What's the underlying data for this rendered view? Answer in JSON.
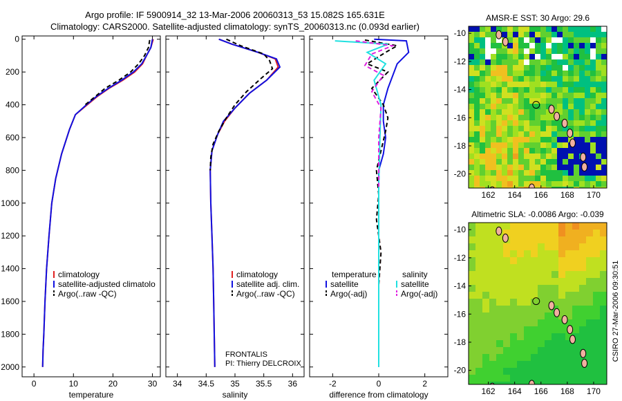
{
  "header": {
    "title_line1": "Argo profile: IF 5900914_32 13-Mar-2006 20060313_53 15.082S 165.631E",
    "title_line2": "Climatology: CARS2000. Satellite-adjusted climatology: synTS_20060313.nc (0.093d earlier)"
  },
  "colors": {
    "climatology": "#e02020",
    "satellite": "#1010e0",
    "argo": "#000000",
    "sal_satellite": "#20e0e0",
    "sal_argo": "#e020e0"
  },
  "chart_data": [
    {
      "type": "line",
      "xlabel": "temperature",
      "ylabel": "",
      "xlim": [
        -3,
        32
      ],
      "ylim": [
        2060,
        -20
      ],
      "y_reversed": true,
      "xticks": [
        0,
        10,
        20,
        30
      ],
      "yticks": [
        0,
        200,
        400,
        600,
        800,
        1000,
        1200,
        1400,
        1600,
        1800,
        2000
      ],
      "legend": [
        "climatology",
        "satellite-adjusted climatolo",
        "Argo(..raw -QC)"
      ],
      "series": [
        {
          "name": "climatology",
          "color": "#e02020",
          "dash": "solid",
          "x": [
            30.2,
            29.6,
            28.5,
            27.5,
            25.5,
            22.5,
            19.0,
            16.0,
            13.5,
            10.5,
            9.0,
            7.0,
            5.5,
            4.5,
            3.8,
            3.2,
            2.8,
            2.5,
            2.3,
            2.2
          ],
          "y": [
            0,
            50,
            100,
            150,
            200,
            250,
            300,
            350,
            400,
            460,
            550,
            700,
            850,
            1000,
            1200,
            1400,
            1600,
            1800,
            1900,
            2000
          ]
        },
        {
          "name": "satellite-adjusted climatolo",
          "color": "#1010e0",
          "dash": "solid",
          "x": [
            30.0,
            29.6,
            28.5,
            27.3,
            25.2,
            22.2,
            18.8,
            15.8,
            13.3,
            10.5,
            9.0,
            7.0,
            5.5,
            4.5,
            3.8,
            3.2,
            2.8,
            2.5,
            2.3,
            2.2
          ],
          "y": [
            0,
            50,
            100,
            150,
            200,
            250,
            300,
            350,
            400,
            460,
            550,
            700,
            850,
            1000,
            1200,
            1400,
            1600,
            1800,
            1900,
            2000
          ]
        },
        {
          "name": "Argo(..raw -QC)",
          "color": "#000000",
          "dash": "dashed",
          "x": [
            29.3,
            29.0,
            28.0,
            26.5,
            24.5,
            21.5,
            18.0,
            15.5,
            13.0
          ],
          "y": [
            5,
            50,
            100,
            150,
            200,
            250,
            300,
            350,
            400
          ]
        }
      ]
    },
    {
      "type": "line",
      "xlabel": "salinity",
      "ylabel": "",
      "xlim": [
        33.8,
        36.2
      ],
      "ylim": [
        2060,
        -20
      ],
      "y_reversed": true,
      "xticks": [
        34,
        34.5,
        35,
        35.5,
        36
      ],
      "legend": [
        "climatology",
        "satellite adj. clim.",
        "Argo(..raw -QC)"
      ],
      "annotations": [
        "FRONTALIS",
        "PI: Thierry DELCROIX"
      ],
      "series": [
        {
          "name": "climatology",
          "color": "#e02020",
          "dash": "solid",
          "x": [
            34.72,
            34.95,
            35.4,
            35.7,
            35.75,
            35.55,
            35.25,
            35.0,
            34.82,
            34.7,
            34.6,
            34.57,
            34.58,
            34.6,
            34.62,
            34.63,
            34.64,
            34.65
          ],
          "y": [
            0,
            30,
            80,
            120,
            170,
            250,
            330,
            420,
            500,
            580,
            680,
            800,
            1000,
            1200,
            1400,
            1600,
            1800,
            2000
          ]
        },
        {
          "name": "satellite adj. clim.",
          "color": "#1010e0",
          "dash": "solid",
          "x": [
            34.72,
            34.95,
            35.4,
            35.72,
            35.78,
            35.55,
            35.25,
            35.0,
            34.8,
            34.7,
            34.6,
            34.57,
            34.58,
            34.6,
            34.62,
            34.63,
            34.64,
            34.65
          ],
          "y": [
            0,
            30,
            80,
            120,
            170,
            250,
            330,
            420,
            500,
            580,
            680,
            800,
            1000,
            1200,
            1400,
            1600,
            1800,
            2000
          ]
        },
        {
          "name": "Argo(..raw -QC)",
          "color": "#000000",
          "dash": "dashed",
          "x": [
            34.85,
            35.1,
            35.5,
            35.6,
            35.65,
            35.45,
            35.2,
            35.0,
            34.85,
            34.72,
            34.62,
            34.58,
            34.57
          ],
          "y": [
            0,
            40,
            90,
            130,
            180,
            240,
            320,
            400,
            480,
            560,
            640,
            720,
            800
          ]
        }
      ]
    },
    {
      "type": "line",
      "xlabel": "difference from climatology",
      "ylabel": "",
      "xlim": [
        -3,
        3
      ],
      "ylim": [
        2060,
        -20
      ],
      "y_reversed": true,
      "xticks": [
        -2,
        0,
        2
      ],
      "legend_left_heading": "temperature",
      "legend_right_heading": "salinity",
      "legend": [
        "satellite",
        "Argo(-adj)",
        "satellite",
        "Argo(-adj)"
      ],
      "series": [
        {
          "name": "satellite",
          "color": "#1010e0",
          "dash": "solid",
          "x": [
            -0.2,
            1.2,
            1.3,
            0.8,
            0.4,
            0.2,
            0.2,
            0.3,
            0.2,
            0.0,
            0.0,
            0.0,
            0.0
          ],
          "y": [
            0,
            10,
            80,
            150,
            300,
            400,
            500,
            600,
            700,
            800,
            1200,
            1600,
            2000
          ]
        },
        {
          "name": "Argo(-adj)",
          "color": "#000000",
          "dash": "dashed",
          "x": [
            -0.6,
            0.8,
            0.3,
            -0.5,
            0.4,
            -0.3,
            0.2,
            0.4,
            0.3,
            0.1,
            -0.1,
            0.0,
            -0.1,
            0.1,
            0.0
          ],
          "y": [
            5,
            40,
            80,
            150,
            200,
            300,
            400,
            480,
            560,
            680,
            800,
            950,
            1100,
            1300,
            1500
          ]
        },
        {
          "name": "satellite",
          "color": "#20e0e0",
          "dash": "solid",
          "x": [
            -1.9,
            0.4,
            -0.5,
            0.3,
            -0.2,
            0.1,
            0.05,
            0.0,
            0.0
          ],
          "y": [
            10,
            30,
            80,
            150,
            250,
            400,
            600,
            900,
            2000
          ]
        },
        {
          "name": "Argo(-adj)",
          "color": "#e020e0",
          "dash": "dashed",
          "x": [
            -1.0,
            0.6,
            -0.3,
            -0.6,
            0.2,
            -0.3,
            0.1,
            0.0,
            0.0
          ],
          "y": [
            10,
            40,
            90,
            160,
            220,
            320,
            420,
            600,
            900
          ]
        }
      ]
    },
    {
      "type": "heatmap",
      "title": "AMSR-E SST: 30 Argo: 29.6",
      "xticks": [
        162,
        164,
        166,
        168,
        170
      ],
      "yticks": [
        -10,
        -12,
        -14,
        -16,
        -18,
        -20
      ]
    },
    {
      "type": "heatmap",
      "title": "Altimetric SLA: -0.0086 Argo: -0.039",
      "xticks": [
        162,
        164,
        166,
        168,
        170
      ],
      "yticks": [
        -10,
        -12,
        -14,
        -16,
        -18,
        -20
      ]
    }
  ],
  "footer": {
    "stamp": "CSIRO 27-Mar-2006 09:30:51"
  }
}
